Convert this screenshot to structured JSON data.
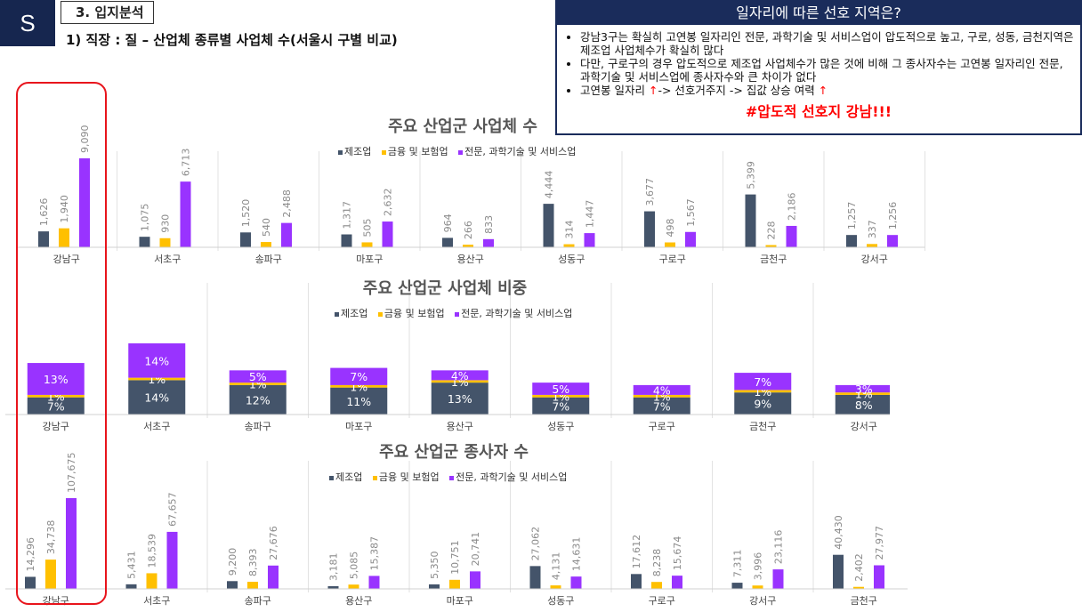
{
  "header": {
    "logo": "S",
    "section": "3. 입지분석",
    "subtitle": "1) 직장 : 질 – 산업체 종류별 사업체 수(서울시 구별 비교)"
  },
  "infobox": {
    "title": "일자리에 따른 선호 지역은?",
    "bullets": [
      "강남3구는 확실히 고연봉 일자리인 전문, 과학기술 및 서비스업이 압도적으로 높고, 구로, 성동, 금천지역은 제조업 사업체수가 확실히 많다",
      "다만, 구로구의 경우 압도적으로 제조업 사업체수가 많은 것에 비해 그 종사자수는 고연봉 일자리인 전문, 과학기술 및 서비스업에 종사자수와 큰 차이가 없다"
    ],
    "bullet3": {
      "a": "고연봉 일자리 ",
      "up1": "↑",
      "b": "-> 선호거주지 -> 집값 상승 여력 ",
      "up2": "↑"
    },
    "hashtag": "#압도적 선호지 강남!!!"
  },
  "colors": {
    "manufacturing": "#44546a",
    "finance": "#ffc000",
    "professional": "#9933ff"
  },
  "chart_data": [
    {
      "type": "bar",
      "title": "주요 산업군 사업체 수",
      "legend": [
        "제조업",
        "금융 및 보험업",
        "전문, 과학기술 및 서비스업"
      ],
      "categories": [
        "강남구",
        "서초구",
        "송파구",
        "마포구",
        "용산구",
        "성동구",
        "구로구",
        "금천구",
        "강서구"
      ],
      "series": [
        {
          "name": "제조업",
          "values": [
            1626,
            1075,
            1520,
            1317,
            964,
            4444,
            3677,
            5399,
            1257
          ],
          "labels": [
            "1,626",
            "1,075",
            "1,520",
            "1,317",
            "964",
            "4,444",
            "3,677",
            "5,399",
            "1,257"
          ]
        },
        {
          "name": "금융 및 보험업",
          "values": [
            1940,
            930,
            540,
            505,
            266,
            314,
            498,
            228,
            337
          ],
          "labels": [
            "1,940",
            "930",
            "540",
            "505",
            "266",
            "314",
            "498",
            "228",
            "337"
          ]
        },
        {
          "name": "전문, 과학기술 및 서비스업",
          "values": [
            9090,
            6713,
            2488,
            2632,
            833,
            1447,
            1567,
            2186,
            1256
          ],
          "labels": [
            "9,090",
            "6,713",
            "2,488",
            "2,632",
            "833",
            "1,447",
            "1,567",
            "2,186",
            "1,256"
          ]
        }
      ]
    },
    {
      "type": "bar",
      "stacked": true,
      "title": "주요 산업군 사업체 비중",
      "legend": [
        "제조업",
        "금융 및 보험업",
        "전문, 과학기술 및 서비스업"
      ],
      "categories": [
        "강남구",
        "서초구",
        "송파구",
        "마포구",
        "용산구",
        "성동구",
        "구로구",
        "금천구",
        "강서구"
      ],
      "series": [
        {
          "name": "제조업",
          "values": [
            7,
            14,
            12,
            11,
            13,
            7,
            7,
            9,
            8
          ],
          "labels": [
            "7%",
            "14%",
            "12%",
            "11%",
            "13%",
            "7%",
            "7%",
            "9%",
            "8%"
          ]
        },
        {
          "name": "금융 및 보험업",
          "values": [
            1,
            1,
            1,
            1,
            1,
            1,
            1,
            1,
            1
          ],
          "labels": [
            "1%",
            "1%",
            "1%",
            "1%",
            "1%",
            "1%",
            "1%",
            "1%",
            "1%"
          ]
        },
        {
          "name": "전문, 과학기술 및 서비스업",
          "values": [
            13,
            14,
            5,
            7,
            4,
            5,
            4,
            7,
            3
          ],
          "labels": [
            "13%",
            "14%",
            "5%",
            "7%",
            "4%",
            "5%",
            "4%",
            "7%",
            "3%"
          ]
        }
      ]
    },
    {
      "type": "bar",
      "title": "주요 산업군 종사자 수",
      "legend": [
        "제조업",
        "금융 및 보험업",
        "전문, 과학기술 및 서비스업"
      ],
      "categories": [
        "강남구",
        "서초구",
        "송파구",
        "용산구",
        "마포구",
        "성동구",
        "구로구",
        "강서구",
        "금천구"
      ],
      "series": [
        {
          "name": "제조업",
          "values": [
            14296,
            5431,
            9200,
            3181,
            5350,
            27062,
            17612,
            7311,
            40430
          ],
          "labels": [
            "14,296",
            "5,431",
            "9,200",
            "3,181",
            "5,350",
            "27,062",
            "17,612",
            "7,311",
            "40,430"
          ]
        },
        {
          "name": "금융 및 보험업",
          "values": [
            34738,
            18539,
            8393,
            5085,
            10751,
            4131,
            8238,
            3996,
            2402
          ],
          "labels": [
            "34,738",
            "18,539",
            "8,393",
            "5,085",
            "10,751",
            "4,131",
            "8,238",
            "3,996",
            "2,402"
          ]
        },
        {
          "name": "전문, 과학기술 및 서비스업",
          "values": [
            107675,
            67657,
            27676,
            15387,
            20741,
            14631,
            15674,
            23116,
            27977
          ],
          "labels": [
            "107,675",
            "67,657",
            "27,676",
            "15,387",
            "20,741",
            "14,631",
            "15,674",
            "23,116",
            "27,977"
          ]
        }
      ]
    }
  ]
}
